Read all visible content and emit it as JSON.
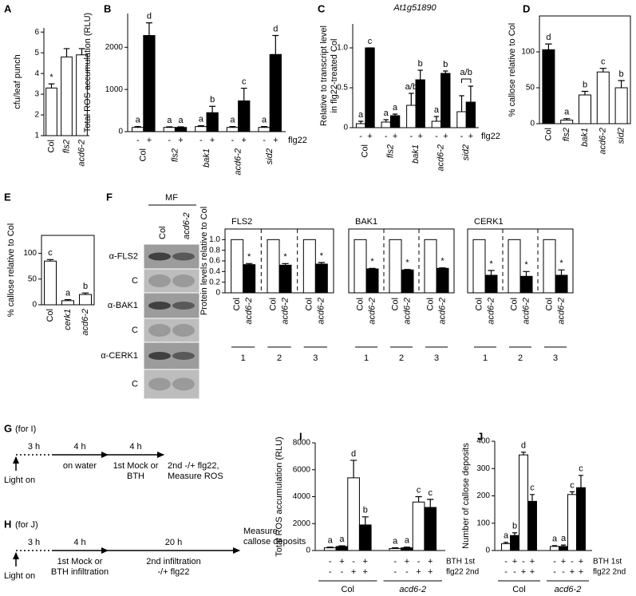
{
  "chart_data": [
    {
      "type": "bar",
      "panel": "A",
      "ylabel": "cfu/leaf punch",
      "ylim": [
        1,
        6.2
      ],
      "yticks": [
        1,
        2,
        3,
        4,
        5,
        6
      ],
      "categories": [
        "Col",
        "fls2",
        "acd6-2"
      ],
      "series": [
        {
          "color": "#ffffff",
          "values": [
            3.3,
            4.8,
            4.9
          ],
          "errors": [
            0.2,
            0.4,
            0.3
          ],
          "letters": [
            "*",
            null,
            null
          ]
        }
      ]
    },
    {
      "type": "bar",
      "panel": "B",
      "ylabel": "Total ROS accumulation (RLU)",
      "ylim": [
        0,
        2800
      ],
      "yticks": [
        0,
        1000,
        2000
      ],
      "categories": [
        "Col",
        "fls2",
        "bak1",
        "acd6-2",
        "sid2"
      ],
      "treatment": "flg22",
      "series": [
        {
          "name": "-",
          "color": "#ffffff",
          "values": [
            100,
            100,
            120,
            100,
            100
          ],
          "errors": [
            20,
            15,
            20,
            20,
            20
          ],
          "letters": [
            "a",
            "a",
            "a",
            "a",
            "a"
          ]
        },
        {
          "name": "+",
          "color": "#000000",
          "values": [
            2280,
            100,
            450,
            730,
            1830
          ],
          "errors": [
            300,
            15,
            150,
            300,
            450
          ],
          "letters": [
            "d",
            "a",
            "b",
            "c",
            "d"
          ]
        }
      ]
    },
    {
      "type": "bar",
      "panel": "C",
      "title": "At1g51890",
      "ylabel": [
        "Relative to transcript level",
        "in flg22-treated Col"
      ],
      "ylim": [
        0,
        1.3
      ],
      "yticks": [
        0,
        0.5,
        {
          "value": 1,
          "label": "1.0"
        }
      ],
      "categories": [
        "Col",
        "fls2",
        "bak1",
        "acd6-2",
        "sid2"
      ],
      "treatment": "flg22",
      "series": [
        {
          "name": "-",
          "color": "#ffffff",
          "values": [
            0.05,
            0.07,
            0.28,
            0.08,
            0.2
          ],
          "errors": [
            0.03,
            0.03,
            0.15,
            0.06,
            0.2
          ],
          "letters": [
            "a",
            "a",
            "a/b",
            "a",
            null
          ]
        },
        {
          "name": "+",
          "color": "#000000",
          "values": [
            1.0,
            0.15,
            0.6,
            0.68,
            0.32
          ],
          "errors": [
            0,
            0.02,
            0.12,
            0.03,
            0.2
          ],
          "letters": [
            "c",
            "a",
            "b",
            "b",
            null
          ]
        }
      ],
      "joint_letters": [
        null,
        null,
        null,
        null,
        "a/b"
      ]
    },
    {
      "type": "bar",
      "panel": "D",
      "ylabel": "% callose relative to Col",
      "ylim": [
        0,
        150
      ],
      "yticks": [
        0,
        50,
        100
      ],
      "categories": [
        "Col",
        "fls2",
        "bak1",
        "acd6-2",
        "sid2"
      ],
      "series": [
        {
          "colors": [
            "#000000",
            "#ffffff",
            "#ffffff",
            "#ffffff",
            "#ffffff"
          ],
          "values": [
            103,
            5,
            40,
            72,
            50
          ],
          "errors": [
            8,
            2,
            5,
            5,
            10
          ],
          "letters": [
            "d",
            "a",
            "b",
            "c",
            "b"
          ]
        }
      ]
    },
    {
      "type": "bar",
      "panel": "E",
      "ylabel": "% callose relative to Col",
      "ylim": [
        0,
        135
      ],
      "yticks": [
        0,
        50,
        100
      ],
      "categories": [
        "Col",
        "cerk1",
        "acd6-2"
      ],
      "series": [
        {
          "color": "#ffffff",
          "values": [
            85,
            8,
            20
          ],
          "errors": [
            3,
            2,
            3
          ],
          "letters": [
            "c",
            "a",
            "b"
          ]
        }
      ]
    },
    {
      "type": "bar",
      "title": "FLS2",
      "ylabel": "Protein levels relative to Col",
      "ylim": [
        0,
        1.2
      ],
      "yticks": [
        0,
        0.2,
        0.4,
        0.6,
        0.8,
        {
          "value": 1,
          "label": "1.0"
        }
      ],
      "categories": [
        "1",
        "2",
        "3"
      ],
      "series": [
        {
          "name": "Col",
          "color": "#ffffff",
          "values": [
            1,
            1,
            1
          ]
        },
        {
          "name": "acd6-2",
          "color": "#000000",
          "values": [
            0.53,
            0.52,
            0.54
          ],
          "errors": [
            0.02,
            0.03,
            0.03
          ],
          "letters": [
            "*",
            "*",
            "*"
          ]
        }
      ]
    },
    {
      "type": "bar",
      "title": "BAK1",
      "ylim": [
        0,
        1.2
      ],
      "categories": [
        "1",
        "2",
        "3"
      ],
      "series": [
        {
          "name": "Col",
          "color": "#ffffff",
          "values": [
            1,
            1,
            1
          ]
        },
        {
          "name": "acd6-2",
          "color": "#000000",
          "values": [
            0.45,
            0.43,
            0.46
          ],
          "errors": [
            0.01,
            0.01,
            0.01
          ],
          "letters": [
            "*",
            "*",
            "*"
          ]
        }
      ]
    },
    {
      "type": "bar",
      "title": "CERK1",
      "ylim": [
        0,
        1.2
      ],
      "categories": [
        "1",
        "2",
        "3"
      ],
      "series": [
        {
          "name": "Col",
          "color": "#ffffff",
          "values": [
            1,
            1,
            1
          ]
        },
        {
          "name": "acd6-2",
          "color": "#000000",
          "values": [
            0.33,
            0.31,
            0.33
          ],
          "errors": [
            0.09,
            0.09,
            0.1
          ],
          "letters": [
            "*",
            "*",
            "*"
          ]
        }
      ]
    },
    {
      "type": "bar",
      "panel": "I",
      "ylabel": "Total ROS accumulation (RLU)",
      "ylim": [
        0,
        8000
      ],
      "yticks": [
        0,
        2000,
        4000,
        6000,
        8000
      ],
      "categories": [
        "Col",
        "acd6-2"
      ],
      "rows": [
        {
          "name": "BTH 1st",
          "signs": [
            "-",
            "+",
            "-",
            "+"
          ]
        },
        {
          "name": "flg22 2nd",
          "signs": [
            "-",
            "-",
            "+",
            "+"
          ]
        }
      ],
      "series": [
        {
          "color": "#ffffff",
          "values": [
            200,
            150
          ],
          "errors": [
            50,
            50
          ],
          "letters": [
            "a",
            "a"
          ]
        },
        {
          "color": "#000000",
          "values": [
            300,
            200
          ],
          "errors": [
            50,
            50
          ],
          "letters": [
            "a",
            "a"
          ]
        },
        {
          "color": "#ffffff",
          "values": [
            5400,
            3600
          ],
          "errors": [
            1300,
            400
          ],
          "letters": [
            "d",
            "c"
          ]
        },
        {
          "color": "#000000",
          "values": [
            1900,
            3200
          ],
          "errors": [
            600,
            600
          ],
          "letters": [
            "b",
            "c"
          ]
        }
      ]
    },
    {
      "type": "bar",
      "panel": "J",
      "ylabel": "Number of callose deposits",
      "ylim": [
        0,
        400
      ],
      "yticks": [
        0,
        100,
        200,
        300,
        400
      ],
      "categories": [
        "Col",
        "acd6-2"
      ],
      "rows": [
        {
          "name": "BTH 1st",
          "signs": [
            "-",
            "+",
            "-",
            "+"
          ]
        },
        {
          "name": "flg22 2nd",
          "signs": [
            "-",
            "-",
            "+",
            "+"
          ]
        }
      ],
      "series": [
        {
          "color": "#ffffff",
          "values": [
            25,
            15
          ],
          "errors": [
            5,
            3
          ],
          "letters": [
            "a",
            "a"
          ]
        },
        {
          "color": "#000000",
          "values": [
            55,
            15
          ],
          "errors": [
            10,
            5
          ],
          "letters": [
            "b",
            "a"
          ]
        },
        {
          "color": "#ffffff",
          "values": [
            350,
            205
          ],
          "errors": [
            10,
            10
          ],
          "letters": [
            "d",
            "c"
          ]
        },
        {
          "color": "#000000",
          "values": [
            180,
            230
          ],
          "errors": [
            25,
            45
          ],
          "letters": [
            "c",
            "c"
          ]
        }
      ]
    }
  ],
  "blot": {
    "panel": "F",
    "header": "MF",
    "lanes": [
      "Col",
      "acd6-2"
    ],
    "rows": [
      "α-FLS2",
      "C",
      "α-BAK1",
      "C",
      "α-CERK1",
      "C"
    ]
  },
  "timelines": [
    {
      "panel": "G",
      "target": "(for I)",
      "start": "Light on",
      "steps": [
        {
          "duration": "3 h"
        },
        {
          "duration": "4 h",
          "label": [
            "on water"
          ]
        },
        {
          "duration": "4 h",
          "label": [
            "1st Mock or",
            "BTH"
          ]
        }
      ],
      "end": [
        "2nd -/+ flg22,",
        "Measure ROS"
      ]
    },
    {
      "panel": "H",
      "target": "(for J)",
      "start": "Light on",
      "steps": [
        {
          "duration": "3 h"
        },
        {
          "duration": "4 h",
          "label": [
            "1st Mock or",
            "BTH infiltration"
          ]
        },
        {
          "duration": "20 h",
          "label": [
            "2nd infiltration",
            "-/+ flg22"
          ]
        }
      ],
      "end": [
        "Measure",
        "callose deposits"
      ]
    }
  ]
}
